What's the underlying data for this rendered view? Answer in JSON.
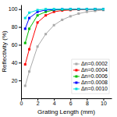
{
  "chart_data": {
    "type": "line",
    "xlabel": "Grating Length (mm)",
    "ylabel": "Reflectivity (%)",
    "x": [
      0.5,
      1,
      2,
      3,
      4,
      5,
      6,
      7,
      8,
      9,
      10
    ],
    "series": [
      {
        "name": "Δn=0.0002",
        "color": "#aaaaaa",
        "marker": "square",
        "values": [
          14,
          30,
          58,
          72,
          82,
          88,
          92,
          95,
          97,
          98,
          99
        ]
      },
      {
        "name": "Δn=0.0004",
        "color": "#ff0000",
        "marker": "square",
        "values": [
          38,
          55,
          85,
          93,
          97,
          98.5,
          99,
          99.5,
          99.8,
          99.9,
          100
        ]
      },
      {
        "name": "Δn=0.0006",
        "color": "#00bb00",
        "marker": "square",
        "values": [
          62,
          78,
          93,
          97,
          99,
          99.5,
          99.8,
          100,
          100,
          100,
          100
        ]
      },
      {
        "name": "Δn=0.0008",
        "color": "#0000ff",
        "marker": "square",
        "values": [
          78,
          90,
          97,
          99,
          99.5,
          100,
          100,
          100,
          100,
          100,
          100
        ]
      },
      {
        "name": "Δn=0.0010",
        "color": "#00dddd",
        "marker": "square",
        "values": [
          90,
          96,
          99,
          100,
          100,
          100,
          100,
          100,
          100,
          100,
          100
        ]
      }
    ],
    "xlim": [
      0,
      11
    ],
    "ylim": [
      0,
      105
    ],
    "xticks": [
      0,
      2,
      4,
      6,
      8,
      10
    ],
    "yticks": [
      20,
      40,
      60,
      80,
      100
    ],
    "grid": false,
    "legend": "lower right"
  }
}
